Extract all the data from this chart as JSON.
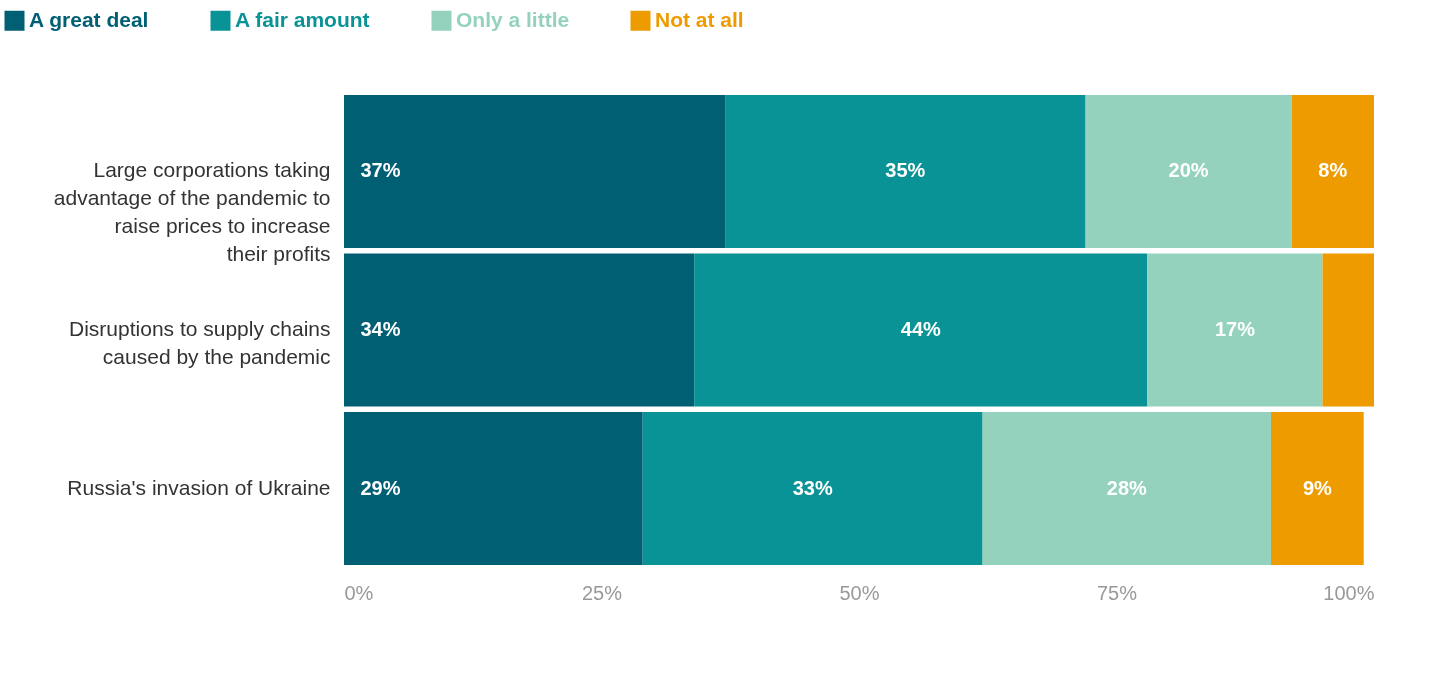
{
  "chart_data": {
    "type": "bar",
    "orientation": "horizontal",
    "stacked": true,
    "legend": "top",
    "categories": [
      "Large corporations taking advantage of the pandemic to raise prices to increase their profits",
      "Disruptions to supply chains caused by the pandemic",
      "Russia's invasion of Ukraine"
    ],
    "series": [
      {
        "name": "A great deal",
        "color": "#005f73",
        "values": [
          37,
          34,
          29
        ],
        "value_labels": [
          "37%",
          "34%",
          "29%"
        ]
      },
      {
        "name": "A fair amount",
        "color": "#0a9396",
        "values": [
          35,
          44,
          33
        ],
        "value_labels": [
          "35%",
          "44%",
          "33%"
        ]
      },
      {
        "name": "Only a little",
        "color": "#94d2bd",
        "values": [
          20,
          17,
          28
        ],
        "value_labels": [
          "20%",
          "17%",
          "28%"
        ]
      },
      {
        "name": "Not at all",
        "color": "#ee9b00",
        "values": [
          8,
          5,
          9
        ],
        "value_labels": [
          "8%",
          null,
          "9%"
        ]
      }
    ],
    "xlim": [
      0,
      100
    ],
    "xticks": [
      {
        "value": 0,
        "label": "0%"
      },
      {
        "value": 25,
        "label": "25%"
      },
      {
        "value": 50,
        "label": "50%"
      },
      {
        "value": 75,
        "label": "75%"
      },
      {
        "value": 100,
        "label": "100%"
      }
    ],
    "grid": false
  }
}
